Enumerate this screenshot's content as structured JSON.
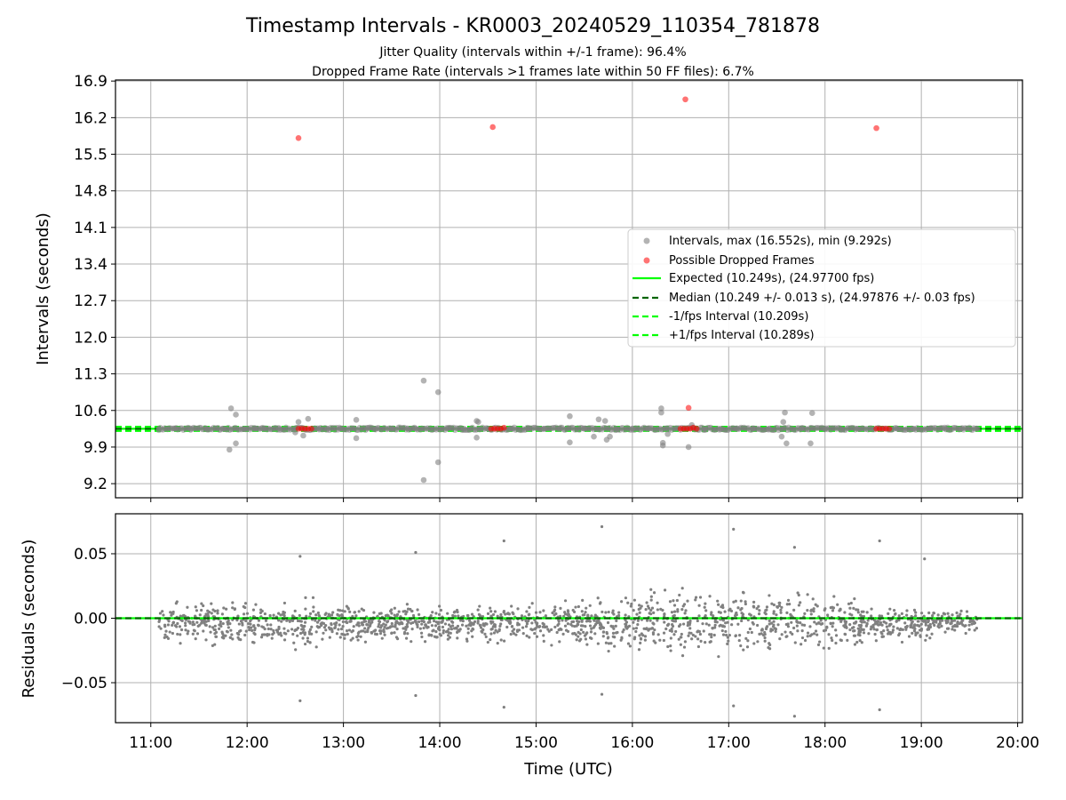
{
  "title": "Timestamp Intervals - KR0003_20240529_110354_781878",
  "subtitle_lines": [
    "Jitter Quality (intervals within +/-1 frame): 96.4%",
    "Dropped Frame Rate (intervals >1 frames late within 50 FF files): 6.7%"
  ],
  "colors": {
    "intervals": "#808080",
    "dropped": "#ff0000",
    "expected": "#00ff00",
    "median": "#006400",
    "fps_interval": "#00ff00",
    "residuals": "#808080",
    "grid": "#b0b0b0"
  },
  "chart_data": [
    {
      "type": "scatter",
      "ylabel": "Intervals (seconds)",
      "xlim": [
        "10:38",
        "20:03"
      ],
      "ylim": [
        8.93,
        16.92
      ],
      "x_ticks": [
        "11:00",
        "12:00",
        "13:00",
        "14:00",
        "15:00",
        "16:00",
        "17:00",
        "18:00",
        "19:00",
        "20:00"
      ],
      "y_ticks": [
        "9.2",
        "9.9",
        "10.6",
        "11.3",
        "12.0",
        "12.7",
        "13.4",
        "14.1",
        "14.8",
        "15.5",
        "16.2",
        "16.9"
      ],
      "grid": true,
      "legend_position": "center-right",
      "legend": [
        {
          "label": "Intervals, max (16.552s), min (9.292s)",
          "kind": "marker",
          "color": "#808080"
        },
        {
          "label": "Possible Dropped Frames",
          "kind": "marker",
          "color": "#ff0000"
        },
        {
          "label": "Expected (10.249s), (24.97700 fps)",
          "kind": "solid",
          "color": "#00ff00"
        },
        {
          "label": "Median (10.249 +/- 0.013 s), (24.97876 +/- 0.03 fps)",
          "kind": "dashed",
          "color": "#006400"
        },
        {
          "label": "-1/fps Interval (10.209s)",
          "kind": "dashed",
          "color": "#00ff00"
        },
        {
          "label": "+1/fps Interval (10.289s)",
          "kind": "dashed",
          "color": "#00ff00"
        }
      ],
      "lines": [
        {
          "name": "Expected",
          "y": 10.249,
          "style": "solid"
        },
        {
          "name": "Median",
          "y": 10.249,
          "style": "dashed"
        },
        {
          "name": "-1/fps Interval",
          "y": 10.209,
          "style": "dashed"
        },
        {
          "name": "+1/fps Interval",
          "y": 10.289,
          "style": "dashed"
        }
      ],
      "series": [
        {
          "name": "Intervals",
          "points": [
            [
              "11:49",
              9.85
            ],
            [
              "11:53",
              9.97
            ],
            [
              "11:50",
              10.64
            ],
            [
              "11:53",
              10.52
            ],
            [
              "12:30",
              10.18
            ],
            [
              "12:32",
              10.38
            ],
            [
              "12:35",
              10.12
            ],
            [
              "12:38",
              10.44
            ],
            [
              "13:08",
              10.42
            ],
            [
              "13:08",
              10.07
            ],
            [
              "13:50",
              9.27
            ],
            [
              "13:50",
              11.17
            ],
            [
              "13:59",
              9.61
            ],
            [
              "13:59",
              10.95
            ],
            [
              "14:23",
              10.08
            ],
            [
              "14:23",
              10.4
            ],
            [
              "14:24",
              10.38
            ],
            [
              "15:21",
              9.99
            ],
            [
              "15:21",
              10.49
            ],
            [
              "15:36",
              10.1
            ],
            [
              "15:39",
              10.43
            ],
            [
              "15:43",
              10.4
            ],
            [
              "15:44",
              10.04
            ],
            [
              "15:46",
              10.1
            ],
            [
              "16:18",
              10.64
            ],
            [
              "16:18",
              10.56
            ],
            [
              "16:19",
              9.93
            ],
            [
              "16:19",
              9.98
            ],
            [
              "16:22",
              10.15
            ],
            [
              "16:35",
              9.9
            ],
            [
              "16:37",
              10.32
            ],
            [
              "17:33",
              10.1
            ],
            [
              "17:34",
              10.38
            ],
            [
              "17:35",
              10.56
            ],
            [
              "17:36",
              9.97
            ],
            [
              "17:51",
              9.97
            ],
            [
              "17:52",
              10.55
            ],
            [
              "11:05",
              10.25
            ],
            [
              "11:15",
              10.25
            ],
            [
              "11:25",
              10.25
            ],
            [
              "11:35",
              10.25
            ],
            [
              "11:45",
              10.25
            ],
            [
              "11:58",
              10.25
            ],
            [
              "12:05",
              10.25
            ],
            [
              "12:10",
              10.25
            ],
            [
              "12:20",
              10.25
            ],
            [
              "12:45",
              10.25
            ],
            [
              "12:50",
              10.25
            ],
            [
              "12:58",
              10.25
            ],
            [
              "13:15",
              10.25
            ],
            [
              "13:20",
              10.25
            ],
            [
              "13:30",
              10.25
            ],
            [
              "13:40",
              10.25
            ],
            [
              "13:45",
              10.25
            ],
            [
              "14:05",
              10.25
            ],
            [
              "14:15",
              10.25
            ],
            [
              "14:30",
              10.25
            ],
            [
              "14:45",
              10.25
            ],
            [
              "14:55",
              10.25
            ],
            [
              "15:05",
              10.25
            ],
            [
              "15:15",
              10.25
            ],
            [
              "15:30",
              10.25
            ],
            [
              "15:50",
              10.25
            ],
            [
              "16:00",
              10.25
            ],
            [
              "16:10",
              10.25
            ],
            [
              "16:45",
              10.25
            ],
            [
              "16:55",
              10.25
            ],
            [
              "17:05",
              10.25
            ],
            [
              "17:15",
              10.25
            ],
            [
              "17:25",
              10.25
            ],
            [
              "17:45",
              10.25
            ],
            [
              "18:00",
              10.25
            ],
            [
              "18:10",
              10.25
            ],
            [
              "18:20",
              10.25
            ],
            [
              "18:45",
              10.25
            ],
            [
              "18:55",
              10.25
            ],
            [
              "19:05",
              10.25
            ],
            [
              "19:15",
              10.25
            ],
            [
              "19:25",
              10.25
            ],
            [
              "19:35",
              10.25
            ]
          ]
        },
        {
          "name": "Possible Dropped Frames",
          "points": [
            [
              "12:32",
              15.81
            ],
            [
              "14:33",
              16.02
            ],
            [
              "16:33",
              16.55
            ],
            [
              "18:32",
              16.0
            ],
            [
              "16:35",
              10.65
            ],
            [
              "12:32",
              10.25
            ],
            [
              "12:34",
              10.25
            ],
            [
              "12:36",
              10.25
            ],
            [
              "12:38",
              10.25
            ],
            [
              "12:40",
              10.25
            ],
            [
              "14:32",
              10.25
            ],
            [
              "14:34",
              10.25
            ],
            [
              "14:36",
              10.25
            ],
            [
              "14:38",
              10.25
            ],
            [
              "14:40",
              10.27
            ],
            [
              "16:30",
              10.25
            ],
            [
              "16:32",
              10.25
            ],
            [
              "16:34",
              10.25
            ],
            [
              "16:36",
              10.25
            ],
            [
              "16:38",
              10.27
            ],
            [
              "16:40",
              10.25
            ],
            [
              "18:32",
              10.25
            ],
            [
              "18:34",
              10.25
            ],
            [
              "18:36",
              10.25
            ],
            [
              "18:38",
              10.25
            ],
            [
              "18:40",
              10.25
            ]
          ]
        }
      ]
    },
    {
      "type": "scatter",
      "xlabel": "Time (UTC)",
      "ylabel": "Residuals (seconds)",
      "xlim": [
        "10:38",
        "20:03"
      ],
      "ylim": [
        -0.081,
        0.081
      ],
      "x_ticks": [
        "11:00",
        "12:00",
        "13:00",
        "14:00",
        "15:00",
        "16:00",
        "17:00",
        "18:00",
        "19:00",
        "20:00"
      ],
      "y_ticks": [
        "0.05",
        "0.00",
        "−0.05"
      ],
      "grid": true,
      "lines": [
        {
          "name": "Expected",
          "y": 0.0,
          "style": "solid"
        },
        {
          "name": "Median",
          "y": 0.0,
          "style": "dashed"
        }
      ],
      "series": [
        {
          "name": "Residuals",
          "x_range": [
            "11:05",
            "19:35"
          ],
          "envelope": [
            [
              "11:05",
              0.015
            ],
            [
              "12:00",
              0.022
            ],
            [
              "13:00",
              0.02
            ],
            [
              "14:00",
              0.014
            ],
            [
              "15:00",
              0.018
            ],
            [
              "16:00",
              0.027
            ],
            [
              "17:00",
              0.03
            ],
            [
              "18:00",
              0.025
            ],
            [
              "19:00",
              0.014
            ],
            [
              "19:35",
              0.01
            ]
          ],
          "center": -0.004,
          "point_count": 1800,
          "outliers": [
            [
              "12:33",
              -0.064
            ],
            [
              "12:33",
              0.048
            ],
            [
              "13:45",
              0.051
            ],
            [
              "13:45",
              -0.06
            ],
            [
              "14:40",
              0.06
            ],
            [
              "14:40",
              -0.069
            ],
            [
              "15:41",
              0.071
            ],
            [
              "15:41",
              -0.059
            ],
            [
              "17:03",
              0.069
            ],
            [
              "17:03",
              -0.068
            ],
            [
              "17:41",
              -0.076
            ],
            [
              "17:41",
              0.055
            ],
            [
              "18:34",
              0.06
            ],
            [
              "18:34",
              -0.071
            ],
            [
              "19:02",
              0.046
            ]
          ]
        }
      ]
    }
  ]
}
